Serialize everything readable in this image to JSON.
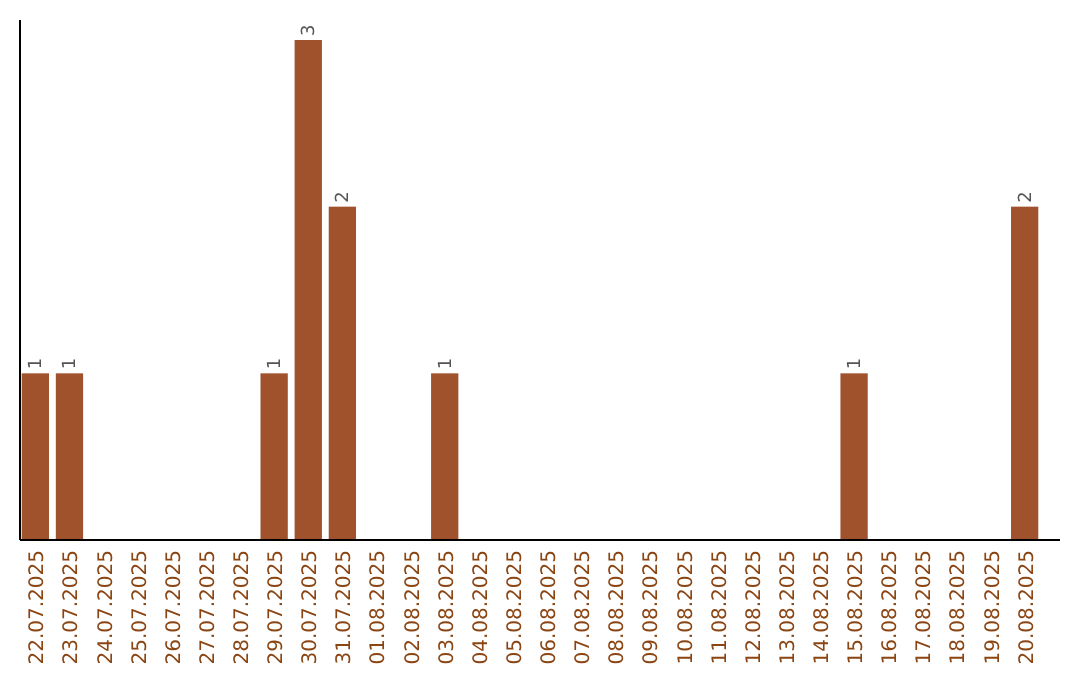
{
  "chart_data": {
    "type": "bar",
    "categories": [
      "22.07.2025",
      "23.07.2025",
      "24.07.2025",
      "25.07.2025",
      "26.07.2025",
      "27.07.2025",
      "28.07.2025",
      "29.07.2025",
      "30.07.2025",
      "31.07.2025",
      "01.08.2025",
      "02.08.2025",
      "03.08.2025",
      "04.08.2025",
      "05.08.2025",
      "06.08.2025",
      "07.08.2025",
      "08.08.2025",
      "09.08.2025",
      "10.08.2025",
      "11.08.2025",
      "12.08.2025",
      "13.08.2025",
      "14.08.2025",
      "15.08.2025",
      "16.08.2025",
      "17.08.2025",
      "18.08.2025",
      "19.08.2025",
      "20.08.2025"
    ],
    "values": [
      1,
      1,
      0,
      0,
      0,
      0,
      0,
      1,
      3,
      2,
      0,
      0,
      1,
      0,
      0,
      0,
      0,
      0,
      0,
      0,
      0,
      0,
      0,
      0,
      1,
      0,
      0,
      0,
      0,
      2
    ],
    "value_labels": [
      "1",
      "1",
      null,
      null,
      null,
      null,
      null,
      "1",
      "3",
      "2",
      null,
      null,
      "1",
      null,
      null,
      null,
      null,
      null,
      null,
      null,
      null,
      null,
      null,
      null,
      "1",
      null,
      null,
      null,
      null,
      "2"
    ],
    "color": "#a0522d",
    "tick_labels": "x"
  }
}
